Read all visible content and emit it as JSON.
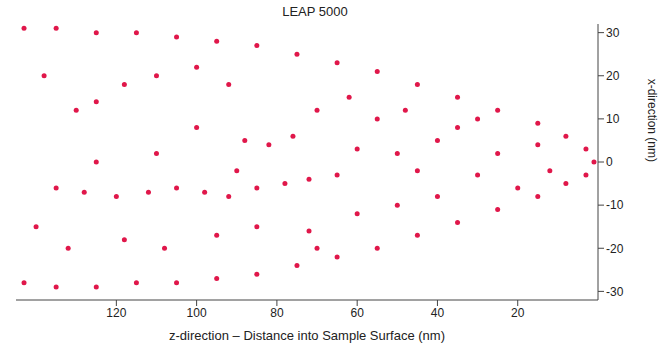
{
  "chart_data": {
    "type": "scatter",
    "title": "LEAP 5000",
    "x_label": "z-direction – Distance into Sample Surface (nm)",
    "y_label": "x-direction (nm)",
    "color": "#e0174a",
    "marker": "circle",
    "grid": false,
    "xlim": [
      145,
      0
    ],
    "xticks": [
      120,
      100,
      80,
      60,
      40,
      20
    ],
    "ylim": [
      -32,
      32
    ],
    "yticks": [
      30,
      20,
      10,
      0,
      -10,
      -20,
      -30
    ],
    "x": [
      143,
      135,
      125,
      115,
      105,
      95,
      85,
      75,
      65,
      55,
      45,
      35,
      25,
      15,
      8,
      3,
      1,
      143,
      135,
      125,
      115,
      105,
      95,
      85,
      75,
      65,
      55,
      45,
      35,
      25,
      15,
      8,
      3,
      135,
      128,
      120,
      112,
      105,
      98,
      92,
      85,
      78,
      72,
      65,
      130,
      125,
      118,
      110,
      100,
      92,
      88,
      82,
      76,
      70,
      62,
      55,
      50,
      45,
      40,
      35,
      30,
      25,
      20,
      15,
      118,
      108,
      95,
      85,
      72,
      60,
      50,
      40,
      125,
      110,
      100,
      90,
      60,
      138,
      140,
      132,
      70,
      48,
      30,
      12
    ],
    "values": [
      31,
      31,
      30,
      30,
      29,
      28,
      27,
      25,
      23,
      21,
      18,
      15,
      12,
      9,
      6,
      3,
      0,
      -28,
      -29,
      -29,
      -28,
      -28,
      -27,
      -26,
      -24,
      -22,
      -20,
      -17,
      -14,
      -11,
      -8,
      -5,
      -3,
      -6,
      -7,
      -8,
      -7,
      -6,
      -7,
      -8,
      -6,
      -5,
      -4,
      -3,
      12,
      14,
      18,
      20,
      22,
      18,
      5,
      4,
      6,
      12,
      15,
      10,
      2,
      -2,
      5,
      8,
      -3,
      2,
      -6,
      4,
      -18,
      -20,
      -17,
      -15,
      -16,
      -12,
      -10,
      -8,
      0,
      2,
      8,
      -2,
      3,
      20,
      -15,
      -20,
      -20,
      12,
      10,
      -2
    ]
  }
}
